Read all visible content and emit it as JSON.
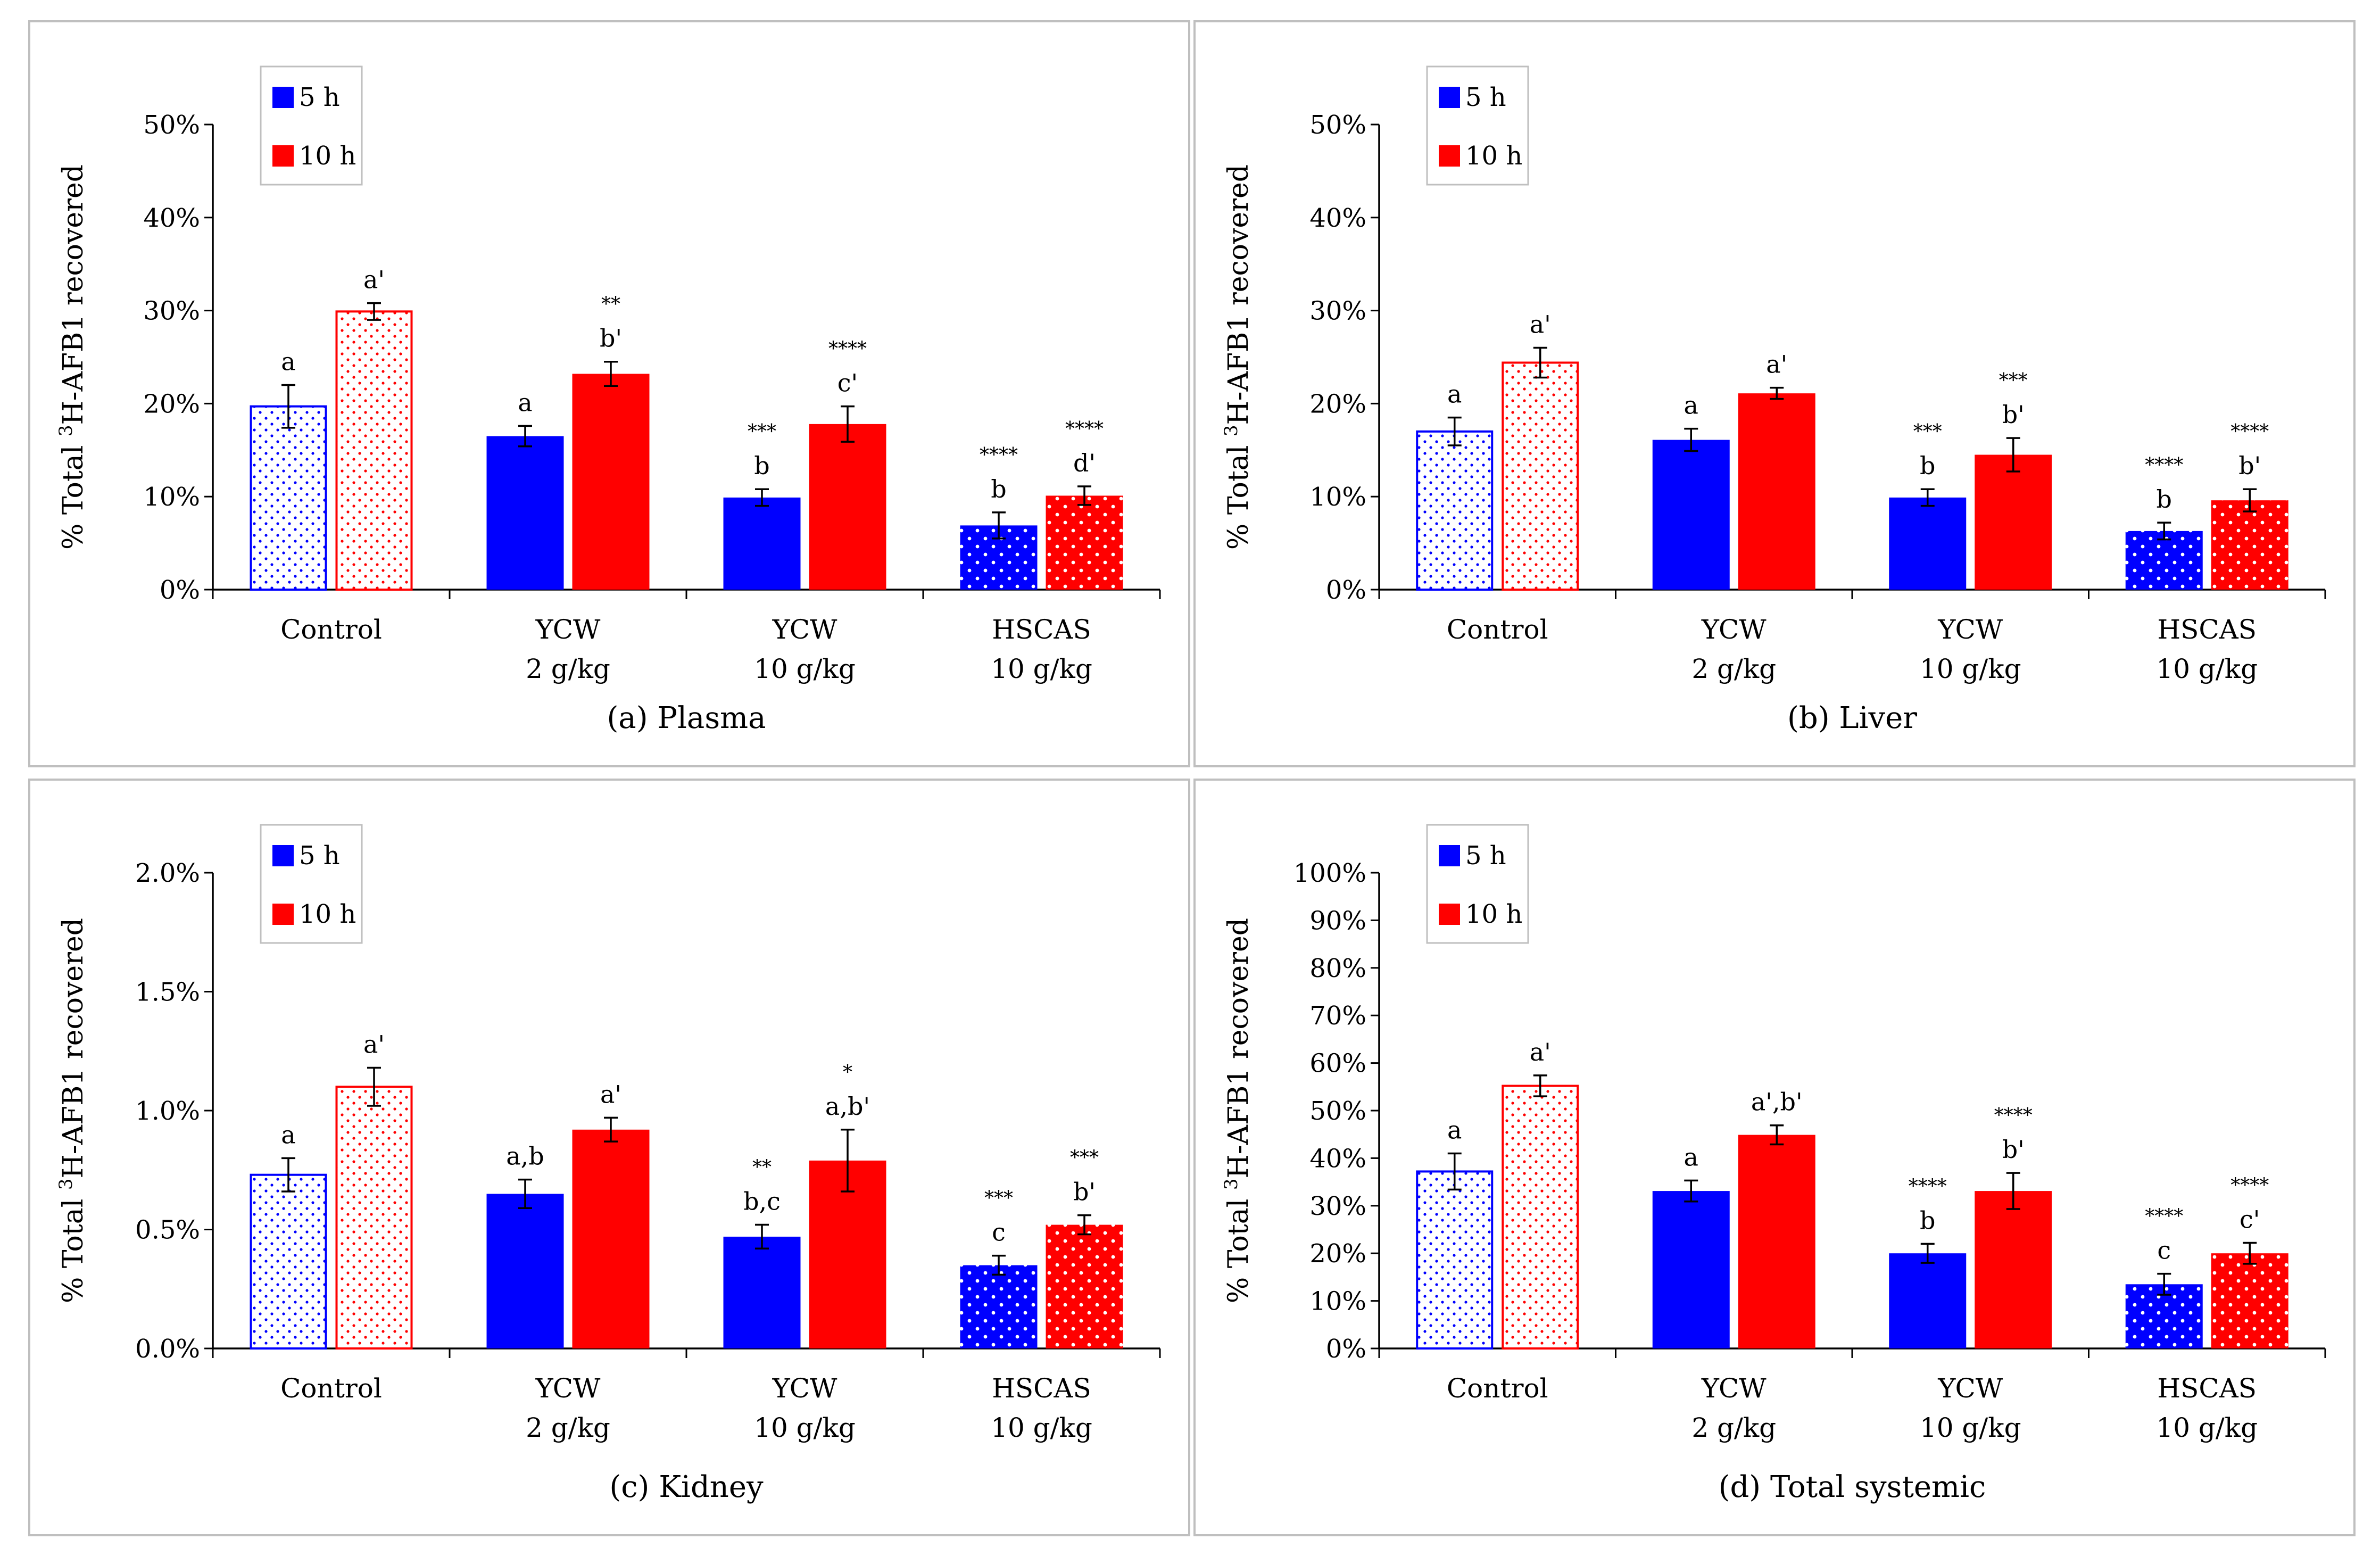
{
  "chart_data": [
    {
      "type": "bar",
      "title": "(a) Plasma",
      "ylabel_parts": [
        "% Total ",
        "3",
        "H-AFB1 recovered"
      ],
      "ylim": [
        0,
        50
      ],
      "yticks": [
        0,
        10,
        20,
        30,
        40,
        50
      ],
      "tick_format": "percent0",
      "categories": [
        [
          "Control"
        ],
        [
          "YCW",
          "2 g/kg"
        ],
        [
          "YCW",
          "10 g/kg"
        ],
        [
          "HSCAS",
          "10 g/kg"
        ]
      ],
      "series": [
        {
          "name": "5 h",
          "color": "#0000ff",
          "values": [
            19.7,
            16.5,
            9.9,
            6.9
          ],
          "errors": [
            2.3,
            1.1,
            0.9,
            1.4
          ],
          "letters": [
            "a",
            "a",
            "b",
            "b"
          ],
          "stars": [
            "",
            "",
            "***",
            "****"
          ]
        },
        {
          "name": "10 h",
          "color": "#ff0000",
          "values": [
            29.9,
            23.2,
            17.8,
            10.1
          ],
          "errors": [
            0.9,
            1.3,
            1.9,
            1.0
          ],
          "letters": [
            "a'",
            "b'",
            "c'",
            "d'"
          ],
          "stars": [
            "",
            "**",
            "****",
            "****"
          ]
        }
      ],
      "patterns": [
        "outline-dots",
        "solid",
        "solid",
        "white-dots"
      ]
    },
    {
      "type": "bar",
      "title": "(b) Liver",
      "ylabel_parts": [
        "% Total ",
        "3",
        "H-AFB1 recovered"
      ],
      "ylim": [
        0,
        50
      ],
      "yticks": [
        0,
        10,
        20,
        30,
        40,
        50
      ],
      "tick_format": "percent0",
      "categories": [
        [
          "Control"
        ],
        [
          "YCW",
          "2 g/kg"
        ],
        [
          "YCW",
          "10 g/kg"
        ],
        [
          "HSCAS",
          "10 g/kg"
        ]
      ],
      "series": [
        {
          "name": "5 h",
          "color": "#0000ff",
          "values": [
            17.0,
            16.1,
            9.9,
            6.3
          ],
          "errors": [
            1.5,
            1.2,
            0.9,
            0.9
          ],
          "letters": [
            "a",
            "a",
            "b",
            "b"
          ],
          "stars": [
            "",
            "",
            "***",
            "****"
          ]
        },
        {
          "name": "10 h",
          "color": "#ff0000",
          "values": [
            24.4,
            21.1,
            14.5,
            9.6
          ],
          "errors": [
            1.6,
            0.6,
            1.8,
            1.2
          ],
          "letters": [
            "a'",
            "a'",
            "b'",
            "b'"
          ],
          "stars": [
            "",
            "",
            "***",
            "****"
          ]
        }
      ],
      "patterns": [
        "outline-dots",
        "solid",
        "solid",
        "white-dots"
      ]
    },
    {
      "type": "bar",
      "title": "(c) Kidney",
      "ylabel_parts": [
        "% Total ",
        "3",
        "H-AFB1 recovered"
      ],
      "ylim": [
        0,
        2.0
      ],
      "yticks": [
        0,
        0.5,
        1.0,
        1.5,
        2.0
      ],
      "tick_format": "percent1",
      "categories": [
        [
          "Control"
        ],
        [
          "YCW",
          "2 g/kg"
        ],
        [
          "YCW",
          "10 g/kg"
        ],
        [
          "HSCAS",
          "10 g/kg"
        ]
      ],
      "series": [
        {
          "name": "5 h",
          "color": "#0000ff",
          "values": [
            0.73,
            0.65,
            0.47,
            0.35
          ],
          "errors": [
            0.07,
            0.06,
            0.05,
            0.04
          ],
          "letters": [
            "a",
            "a,b",
            "b,c",
            "c"
          ],
          "stars": [
            "",
            "",
            "**",
            "***"
          ]
        },
        {
          "name": "10 h",
          "color": "#ff0000",
          "values": [
            1.1,
            0.92,
            0.79,
            0.52
          ],
          "errors": [
            0.08,
            0.05,
            0.13,
            0.04
          ],
          "letters": [
            "a'",
            "a'",
            "a,b'",
            "b'"
          ],
          "stars": [
            "",
            "",
            "*",
            "***"
          ]
        }
      ],
      "patterns": [
        "outline-dots",
        "solid",
        "solid",
        "white-dots"
      ]
    },
    {
      "type": "bar",
      "title": "(d) Total systemic",
      "ylabel_parts": [
        "% Total ",
        "3",
        "H-AFB1 recovered"
      ],
      "ylim": [
        0,
        100
      ],
      "yticks": [
        0,
        10,
        20,
        30,
        40,
        50,
        60,
        70,
        80,
        90,
        100
      ],
      "tick_format": "percent0",
      "categories": [
        [
          "Control"
        ],
        [
          "YCW",
          "2 g/kg"
        ],
        [
          "YCW",
          "10 g/kg"
        ],
        [
          "HSCAS",
          "10 g/kg"
        ]
      ],
      "series": [
        {
          "name": "5 h",
          "color": "#0000ff",
          "values": [
            37.2,
            33.1,
            20.0,
            13.5
          ],
          "errors": [
            3.8,
            2.2,
            2.0,
            2.2
          ],
          "letters": [
            "a",
            "a",
            "b",
            "c"
          ],
          "stars": [
            "",
            "",
            "****",
            "****"
          ]
        },
        {
          "name": "10 h",
          "color": "#ff0000",
          "values": [
            55.2,
            44.9,
            33.1,
            20.0
          ],
          "errors": [
            2.2,
            2.0,
            3.8,
            2.2
          ],
          "letters": [
            "a'",
            "a',b'",
            "b'",
            "c'"
          ],
          "stars": [
            "",
            "",
            "****",
            "****"
          ]
        }
      ],
      "patterns": [
        "outline-dots",
        "solid",
        "solid",
        "white-dots"
      ]
    }
  ]
}
